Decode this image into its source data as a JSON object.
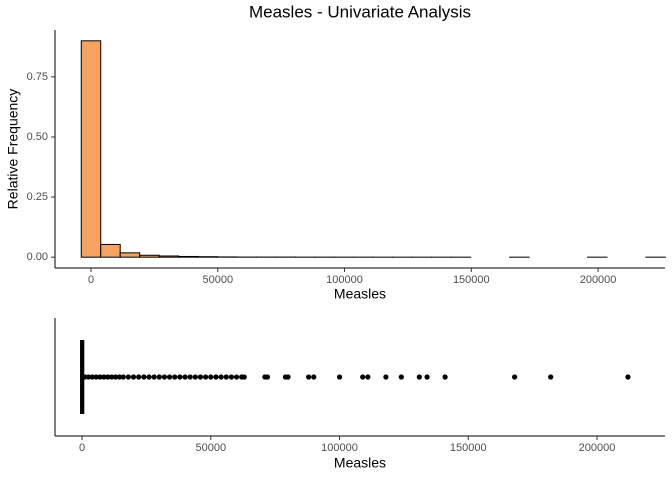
{
  "chart_data": [
    {
      "type": "histogram",
      "title": "Measles - Univariate Analysis",
      "x_label": "Measles",
      "y_label": "Relative Frequency",
      "bins": [
        -3840,
        3840,
        11520,
        19200,
        26880,
        34560,
        42240,
        49920,
        57600,
        65280,
        72960,
        80640,
        88320,
        96000,
        103680,
        111360,
        119040,
        126720,
        134400,
        142080,
        149760,
        157440,
        165120,
        172800,
        180480,
        188160,
        195840,
        203520,
        211200,
        218880,
        226560
      ],
      "values": [
        0.9,
        0.053,
        0.018,
        0.008,
        0.005,
        0.003,
        0.002,
        0.001,
        0.0005,
        0.0005,
        0.0005,
        0.0003,
        0.0003,
        0.0002,
        0.0002,
        0.0001,
        0.0001,
        0.0001,
        0.0001,
        0.0001,
        0,
        0,
        0.0001,
        0,
        0,
        0,
        0.0001,
        0,
        0,
        0.0001
      ],
      "color": "#f4a460",
      "edge_color": "#000000",
      "xlim": [
        -14200,
        226400
      ],
      "xticks": [
        0,
        50000,
        100000,
        150000,
        200000
      ],
      "ylim": [
        -0.045,
        0.945
      ],
      "yticks": [
        {
          "value": 0,
          "label": "0.00"
        },
        {
          "value": 0.25,
          "label": "0.25"
        },
        {
          "value": 0.5,
          "label": "0.50"
        },
        {
          "value": 0.75,
          "label": "0.75"
        }
      ]
    },
    {
      "type": "boxplot",
      "x_label": "Measles",
      "whisker_low": 0,
      "q1": 0,
      "median": 0,
      "q3": 100,
      "whisker_high": 300,
      "outliers": [
        1000,
        2500,
        4000,
        5500,
        7000,
        8500,
        10000,
        11500,
        13000,
        14500,
        16000,
        18000,
        20000,
        22000,
        24000,
        26000,
        28000,
        30000,
        32000,
        34000,
        36000,
        38000,
        40000,
        42000,
        44000,
        46000,
        48000,
        50000,
        52000,
        54000,
        56000,
        58000,
        60000,
        62000,
        63000,
        71000,
        72000,
        79000,
        80000,
        88000,
        90000,
        100000,
        109000,
        111000,
        118000,
        124000,
        131000,
        134000,
        141000,
        168000,
        182000,
        212000
      ],
      "xlim": [
        -10500,
        226400
      ],
      "xticks": [
        0,
        50000,
        100000,
        150000,
        200000
      ]
    }
  ]
}
